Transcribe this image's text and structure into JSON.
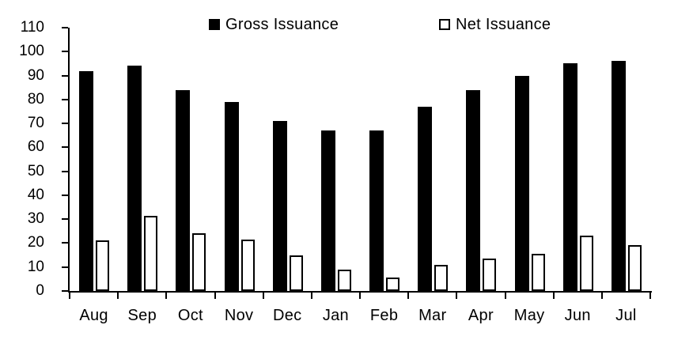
{
  "chart_data": {
    "type": "bar",
    "title": "",
    "xlabel": "",
    "ylabel": "",
    "categories": [
      "Aug",
      "Sep",
      "Oct",
      "Nov",
      "Dec",
      "Jan",
      "Feb",
      "Mar",
      "Apr",
      "May",
      "Jun",
      "Jul"
    ],
    "series": [
      {
        "name": "Gross Issuance",
        "values": [
          92,
          94,
          84,
          79,
          71,
          67,
          67,
          77,
          84,
          90,
          95,
          96
        ],
        "fill": "#000000",
        "stroke": "#000000"
      },
      {
        "name": "Net Issuance",
        "values": [
          21,
          31.5,
          24,
          21.5,
          15,
          9,
          5.5,
          11,
          13.5,
          15.5,
          23,
          19
        ],
        "fill": "#ffffff",
        "stroke": "#000000"
      }
    ],
    "ylim": [
      0,
      110
    ],
    "yticks": [
      0,
      10,
      20,
      30,
      40,
      50,
      60,
      70,
      80,
      90,
      100,
      110
    ],
    "grid": false,
    "legend_position": "top"
  },
  "legend": {
    "gross_swatch": "filled-black-square-icon",
    "net_swatch": "outlined-white-square-icon"
  },
  "colors": {
    "foreground": "#000000",
    "background": "#ffffff"
  }
}
